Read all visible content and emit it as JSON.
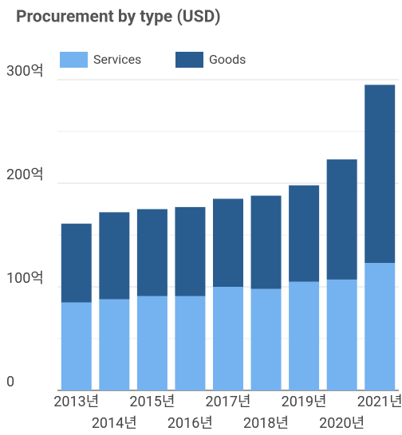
{
  "chart_data": {
    "type": "stacked_bar",
    "title": "Procurement by type (USD)",
    "categories": [
      "2013년",
      "2014년",
      "2015년",
      "2016년",
      "2017년",
      "2018년",
      "2019년",
      "2020년",
      "2021년"
    ],
    "series": [
      {
        "name": "Services",
        "color": "#74b3f0",
        "values": [
          85,
          88,
          91,
          91,
          100,
          98,
          105,
          107,
          123
        ]
      },
      {
        "name": "Goods",
        "color": "#2a5d8f",
        "values": [
          76,
          84,
          84,
          86,
          85,
          90,
          93,
          116,
          172
        ]
      }
    ],
    "ylim": [
      0,
      300
    ],
    "yticks": [
      0,
      {
        "value": 100,
        "label": "100억"
      },
      {
        "value": 200,
        "label": "200억"
      },
      {
        "value": 300,
        "label": "300억"
      }
    ],
    "minor_yticks": [
      50,
      150,
      250
    ],
    "grid": true,
    "legend": "top"
  }
}
